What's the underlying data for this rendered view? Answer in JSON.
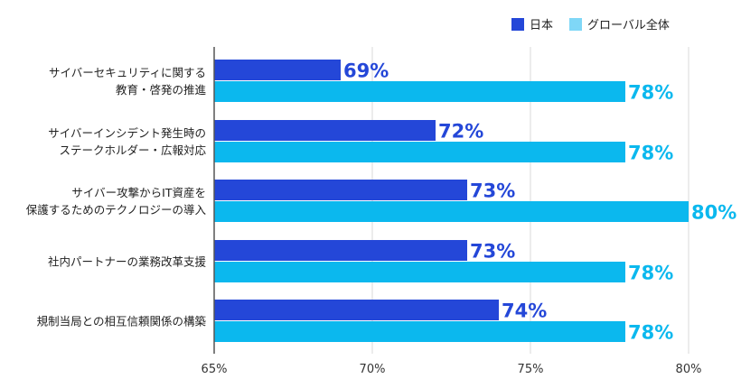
{
  "legend": {
    "japan_label": "日本",
    "global_label": "グローバル全体"
  },
  "colors": {
    "japan": "#2447d8",
    "global": "#0bb8ee",
    "axis": "#555555",
    "grid": "#d9d9d9"
  },
  "chart_data": {
    "type": "bar",
    "orientation": "horizontal",
    "categories": [
      [
        "サイバーセキュリティに関する",
        "教育・啓発の推進"
      ],
      [
        "サイバーインシデント発生時の",
        "ステークホルダー・広報対応"
      ],
      [
        "サイバー攻撃からIT資産を",
        "保護するためのテクノロジーの導入"
      ],
      [
        "社内パートナーの業務改革支援"
      ],
      [
        "規制当局との相互信頼関係の構築"
      ]
    ],
    "series": [
      {
        "name": "日本",
        "values": [
          69,
          72,
          73,
          73,
          74
        ]
      },
      {
        "name": "グローバル全体",
        "values": [
          78,
          78,
          80,
          78,
          78
        ]
      }
    ],
    "value_labels": {
      "japan": [
        "69%",
        "72%",
        "73%",
        "73%",
        "74%"
      ],
      "global": [
        "78%",
        "78%",
        "80%",
        "78%",
        "78%"
      ]
    },
    "xlim": [
      65,
      80
    ],
    "xticks": [
      65,
      70,
      75,
      80
    ],
    "xtick_labels": [
      "65%",
      "70%",
      "75%",
      "80%"
    ],
    "grid": true,
    "legend_position": "top-right",
    "title": "",
    "xlabel": "",
    "ylabel": ""
  }
}
